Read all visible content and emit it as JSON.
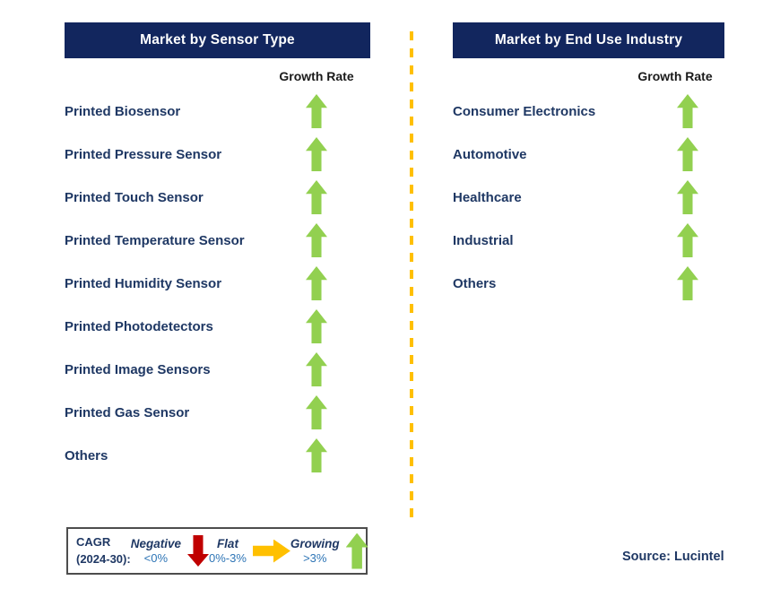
{
  "colors": {
    "headerBg": "#12265E",
    "headerText": "#FFFFFF",
    "itemText": "#1F3864",
    "growthLabelColor": "#1A1A1A",
    "green": "#92D050",
    "red": "#C00000",
    "amber": "#FFC000",
    "valueBlue": "#2E75B6",
    "legendBorder": "#4D4D4D"
  },
  "left_panel": {
    "title": "Market by Sensor Type",
    "growth_rate_label": "Growth Rate",
    "items": [
      {
        "label": "Printed Biosensor",
        "trend": "growing"
      },
      {
        "label": "Printed Pressure Sensor",
        "trend": "growing"
      },
      {
        "label": "Printed Touch Sensor",
        "trend": "growing"
      },
      {
        "label": "Printed Temperature Sensor",
        "trend": "growing"
      },
      {
        "label": "Printed Humidity Sensor",
        "trend": "growing"
      },
      {
        "label": "Printed Photodetectors",
        "trend": "growing"
      },
      {
        "label": "Printed Image Sensors",
        "trend": "growing"
      },
      {
        "label": "Printed Gas Sensor",
        "trend": "growing"
      },
      {
        "label": "Others",
        "trend": "growing"
      }
    ]
  },
  "right_panel": {
    "title": "Market by End Use Industry",
    "growth_rate_label": "Growth Rate",
    "items": [
      {
        "label": "Consumer Electronics",
        "trend": "growing"
      },
      {
        "label": "Automotive",
        "trend": "growing"
      },
      {
        "label": "Healthcare",
        "trend": "growing"
      },
      {
        "label": "Industrial",
        "trend": "growing"
      },
      {
        "label": "Others",
        "trend": "growing"
      }
    ]
  },
  "legend": {
    "title_line1": "CAGR",
    "title_line2": "(2024-30):",
    "entries": [
      {
        "label": "Negative",
        "range": "<0%",
        "arrow": "down-red"
      },
      {
        "label": "Flat",
        "range": "0%-3%",
        "arrow": "right-amber"
      },
      {
        "label": "Growing",
        "range": ">3%",
        "arrow": "up-green"
      }
    ]
  },
  "source": "Source: Lucintel"
}
